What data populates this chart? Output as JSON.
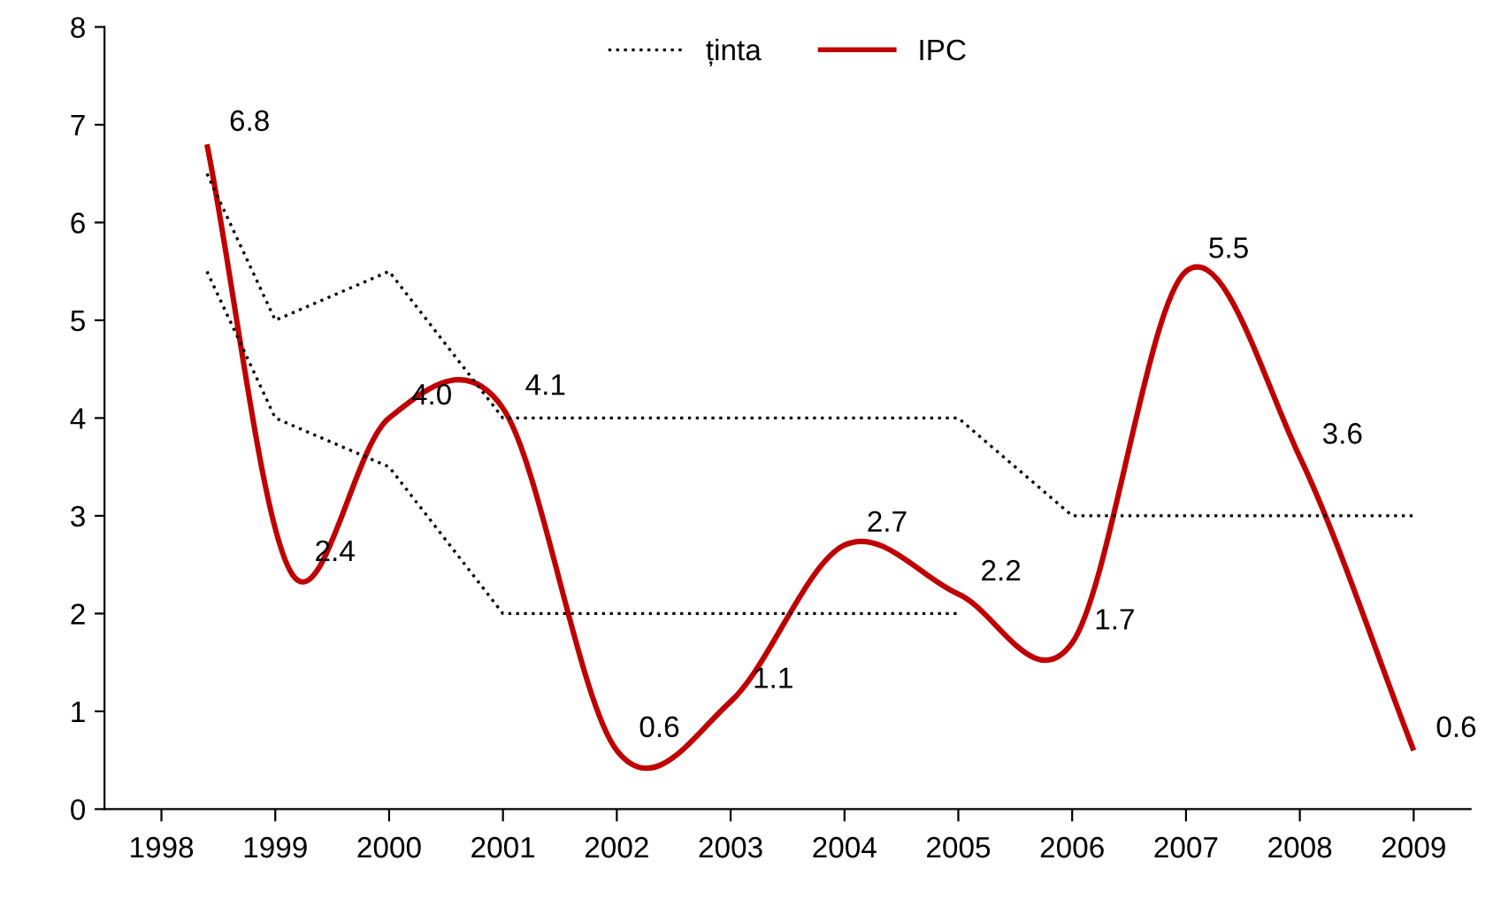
{
  "chart_data": {
    "type": "line",
    "xlim": [
      1997.5,
      2009.5
    ],
    "xticks": [
      1998,
      1999,
      2000,
      2001,
      2002,
      2003,
      2004,
      2005,
      2006,
      2007,
      2008,
      2009
    ],
    "ylim": [
      0,
      8
    ],
    "yticks": [
      0,
      1,
      2,
      3,
      4,
      5,
      6,
      7,
      8
    ],
    "grid": false,
    "legend": "top",
    "marker": "none",
    "series": [
      {
        "name": "ținta",
        "color": "#000000",
        "line_style": "dotted",
        "x": [
          1998.4,
          1999,
          2000,
          2001,
          2005,
          2006,
          2009
        ],
        "values": [
          6.5,
          5.0,
          5.5,
          4.0,
          4.0,
          3.0,
          3.0
        ]
      },
      {
        "color": "#000000",
        "line_style": "dotted",
        "x": [
          1998.4,
          1999,
          2000,
          2001,
          2005
        ],
        "values": [
          5.5,
          4.0,
          3.5,
          2.0,
          2.0
        ]
      },
      {
        "name": "IPC",
        "color": "#c00000",
        "line_style": "solid",
        "x": [
          1998.4,
          1999.15,
          2000,
          2001,
          2002,
          2003,
          2004,
          2005,
          2006,
          2007,
          2008,
          2009
        ],
        "values": [
          6.8,
          2.4,
          4.0,
          4.1,
          0.6,
          1.1,
          2.7,
          2.2,
          1.7,
          5.5,
          3.6,
          0.6
        ],
        "value_labels": [
          "6.8",
          "2.4",
          "4.0",
          "4.1",
          "0.6",
          "1.1",
          "2.7",
          "2.2",
          "1.7",
          "5.5",
          "3.6",
          "0.6"
        ]
      }
    ]
  }
}
